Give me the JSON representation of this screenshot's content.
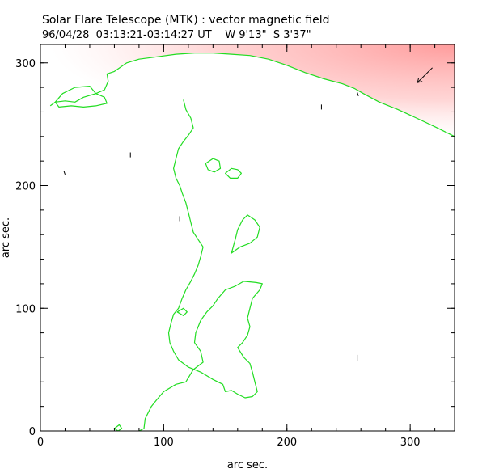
{
  "chart_data": {
    "type": "line",
    "title": "Solar Flare Telescope (MTK) : vector magnetic field",
    "subtitle": "96/04/28  03:13:21-03:14:27 UT    W 9'13\"  S 3'37\"",
    "xlabel": "arc sec.",
    "ylabel": "arc sec.",
    "xlim": [
      0,
      336
    ],
    "ylim": [
      0,
      315
    ],
    "xticks": [
      0,
      100,
      200,
      300
    ],
    "yticks": [
      0,
      100,
      200,
      300
    ],
    "x_minor_step": 20,
    "y_minor_step": 20,
    "grid": false,
    "colors": {
      "contour": "#22dd22",
      "vectors": "#000000",
      "limb_shade": "#ffb3b3",
      "axes": "#000000"
    },
    "series": [
      {
        "name": "limb-contour",
        "points": [
          [
            8,
            265
          ],
          [
            12,
            268
          ],
          [
            20,
            269
          ],
          [
            28,
            268
          ],
          [
            35,
            272
          ],
          [
            45,
            275
          ],
          [
            52,
            278
          ],
          [
            55,
            285
          ],
          [
            54,
            291
          ],
          [
            60,
            293
          ],
          [
            70,
            300
          ],
          [
            80,
            303
          ],
          [
            95,
            305
          ],
          [
            110,
            307
          ],
          [
            125,
            308
          ],
          [
            140,
            308
          ],
          [
            155,
            307
          ],
          [
            170,
            306
          ],
          [
            185,
            303
          ],
          [
            200,
            298
          ],
          [
            215,
            292
          ],
          [
            230,
            287
          ],
          [
            245,
            283
          ],
          [
            255,
            279
          ],
          [
            262,
            275
          ],
          [
            275,
            268
          ],
          [
            290,
            262
          ],
          [
            305,
            255
          ],
          [
            320,
            248
          ],
          [
            336,
            240
          ]
        ]
      },
      {
        "name": "island-top-left",
        "closed": true,
        "points": [
          [
            12,
            268
          ],
          [
            18,
            275
          ],
          [
            28,
            280
          ],
          [
            40,
            281
          ],
          [
            45,
            275
          ],
          [
            52,
            272
          ],
          [
            54,
            267
          ],
          [
            45,
            265
          ],
          [
            35,
            264
          ],
          [
            25,
            265
          ],
          [
            15,
            264
          ]
        ]
      },
      {
        "name": "neutral-line",
        "points": [
          [
            80,
            0
          ],
          [
            84,
            2
          ],
          [
            85,
            10
          ],
          [
            90,
            20
          ],
          [
            94,
            25
          ],
          [
            100,
            32
          ],
          [
            110,
            38
          ],
          [
            118,
            40
          ],
          [
            124,
            50
          ],
          [
            132,
            56
          ],
          [
            130,
            65
          ],
          [
            125,
            72
          ],
          [
            126,
            80
          ],
          [
            130,
            90
          ],
          [
            135,
            97
          ],
          [
            140,
            102
          ],
          [
            144,
            108
          ],
          [
            150,
            115
          ],
          [
            158,
            118
          ],
          [
            165,
            122
          ],
          [
            175,
            121
          ],
          [
            180,
            120
          ],
          [
            178,
            115
          ],
          [
            172,
            108
          ],
          [
            170,
            100
          ],
          [
            168,
            92
          ],
          [
            170,
            85
          ],
          [
            168,
            78
          ],
          [
            164,
            72
          ],
          [
            160,
            68
          ],
          [
            165,
            60
          ],
          [
            170,
            55
          ],
          [
            172,
            48
          ],
          [
            174,
            40
          ],
          [
            176,
            32
          ],
          [
            172,
            28
          ],
          [
            166,
            27
          ],
          [
            160,
            30
          ],
          [
            155,
            33
          ],
          [
            150,
            32
          ],
          [
            148,
            38
          ],
          [
            140,
            42
          ],
          [
            130,
            48
          ],
          [
            120,
            52
          ],
          [
            112,
            58
          ],
          [
            108,
            65
          ],
          [
            105,
            72
          ],
          [
            104,
            80
          ],
          [
            106,
            88
          ],
          [
            108,
            95
          ],
          [
            112,
            100
          ],
          [
            115,
            108
          ],
          [
            118,
            115
          ],
          [
            122,
            122
          ],
          [
            125,
            128
          ],
          [
            128,
            135
          ],
          [
            130,
            142
          ],
          [
            132,
            150
          ],
          [
            128,
            156
          ],
          [
            124,
            162
          ],
          [
            122,
            170
          ],
          [
            120,
            178
          ],
          [
            118,
            186
          ],
          [
            115,
            194
          ],
          [
            113,
            200
          ],
          [
            110,
            206
          ],
          [
            108,
            214
          ],
          [
            110,
            222
          ],
          [
            112,
            230
          ],
          [
            116,
            236
          ],
          [
            120,
            241
          ],
          [
            124,
            247
          ],
          [
            122,
            255
          ],
          [
            118,
            262
          ],
          [
            116,
            270
          ]
        ]
      },
      {
        "name": "island-mid-right",
        "closed": true,
        "points": [
          [
            155,
            145
          ],
          [
            162,
            150
          ],
          [
            170,
            153
          ],
          [
            176,
            158
          ],
          [
            178,
            166
          ],
          [
            174,
            172
          ],
          [
            168,
            176
          ],
          [
            164,
            172
          ],
          [
            160,
            164
          ],
          [
            158,
            156
          ]
        ]
      },
      {
        "name": "island-small-1",
        "closed": true,
        "points": [
          [
            150,
            210
          ],
          [
            155,
            214
          ],
          [
            160,
            213
          ],
          [
            163,
            210
          ],
          [
            160,
            206
          ],
          [
            154,
            206
          ]
        ]
      },
      {
        "name": "island-small-2",
        "closed": true,
        "points": [
          [
            134,
            218
          ],
          [
            140,
            222
          ],
          [
            145,
            220
          ],
          [
            146,
            214
          ],
          [
            141,
            211
          ],
          [
            136,
            213
          ]
        ]
      },
      {
        "name": "island-small-3",
        "closed": true,
        "points": [
          [
            111,
            97
          ],
          [
            116,
            100
          ],
          [
            119,
            97
          ],
          [
            116,
            94
          ]
        ]
      },
      {
        "name": "island-small-4",
        "closed": true,
        "points": [
          [
            60,
            2
          ],
          [
            64,
            5
          ],
          [
            66,
            2
          ],
          [
            63,
            0
          ]
        ]
      }
    ],
    "vectors": [
      {
        "x": 19,
        "y": 212,
        "dx": 1,
        "dy": -3
      },
      {
        "x": 73,
        "y": 223,
        "dx": 0,
        "dy": 4
      },
      {
        "x": 113,
        "y": 171,
        "dx": 0,
        "dy": 4
      },
      {
        "x": 228,
        "y": 262,
        "dx": 0,
        "dy": 4
      },
      {
        "x": 257,
        "y": 276,
        "dx": 1,
        "dy": -3
      },
      {
        "x": 257,
        "y": 57,
        "dx": 0,
        "dy": 5
      },
      {
        "x": 318,
        "y": 296,
        "dx": -12,
        "dy": -12,
        "arrow": true
      }
    ]
  }
}
